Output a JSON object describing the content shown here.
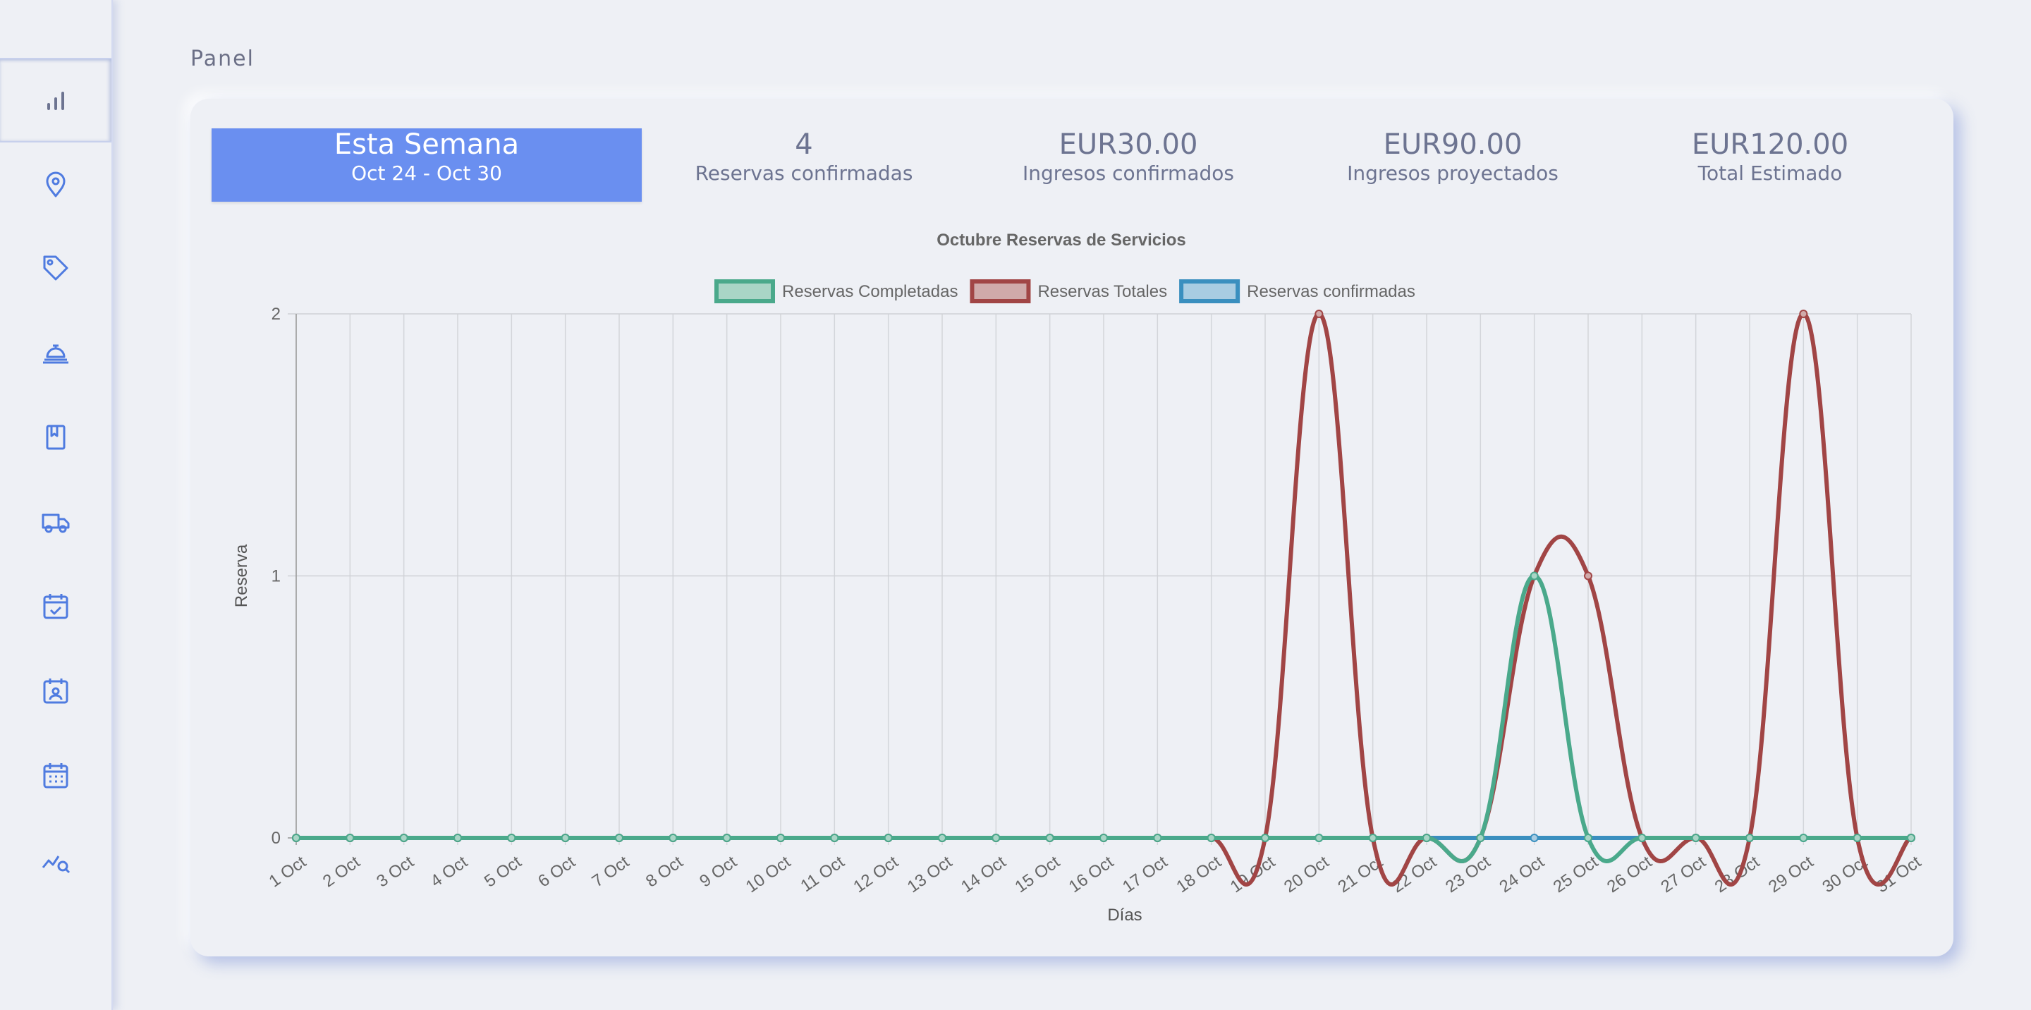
{
  "page": {
    "title": "Panel"
  },
  "sidebar": {
    "items": [
      {
        "name": "sidebar-item-dashboard",
        "icon": "bar-chart-icon"
      },
      {
        "name": "sidebar-item-locations",
        "icon": "location-pin-icon"
      },
      {
        "name": "sidebar-item-tags",
        "icon": "tag-icon"
      },
      {
        "name": "sidebar-item-services",
        "icon": "room-service-icon"
      },
      {
        "name": "sidebar-item-bookmarks",
        "icon": "bookmark-icon"
      },
      {
        "name": "sidebar-item-delivery",
        "icon": "truck-icon"
      },
      {
        "name": "sidebar-item-calendar-check",
        "icon": "calendar-check-icon"
      },
      {
        "name": "sidebar-item-calendar-user",
        "icon": "calendar-user-icon"
      },
      {
        "name": "sidebar-item-calendar",
        "icon": "calendar-icon"
      },
      {
        "name": "sidebar-item-analytics",
        "icon": "chart-search-icon"
      }
    ],
    "accent": "#4f7be0"
  },
  "stats": {
    "week": {
      "value": "Esta Semana",
      "label": "Oct 24 - Oct 30"
    },
    "confirmed": {
      "value": "4",
      "label": "Reservas confirmadas"
    },
    "income_confirmed": {
      "value": "EUR30.00",
      "label": "Ingresos confirmados"
    },
    "income_projected": {
      "value": "EUR90.00",
      "label": "Ingresos proyectados"
    },
    "total": {
      "value": "EUR120.00",
      "label": "Total Estimado"
    }
  },
  "chart_data": {
    "type": "line",
    "title": "Octubre Reservas de Servicios",
    "xlabel": "Días",
    "ylabel": "Reserva",
    "ylim": [
      0,
      2
    ],
    "yticks": [
      "0",
      "1",
      "2"
    ],
    "grid": true,
    "legend": "top",
    "categories": [
      "1 Oct",
      "2 Oct",
      "3 Oct",
      "4 Oct",
      "5 Oct",
      "6 Oct",
      "7 Oct",
      "8 Oct",
      "9 Oct",
      "10 Oct",
      "11 Oct",
      "12 Oct",
      "13 Oct",
      "14 Oct",
      "15 Oct",
      "16 Oct",
      "17 Oct",
      "18 Oct",
      "19 Oct",
      "20 Oct",
      "21 Oct",
      "22 Oct",
      "23 Oct",
      "24 Oct",
      "25 Oct",
      "26 Oct",
      "27 Oct",
      "28 Oct",
      "29 Oct",
      "30 Oct",
      "31 Oct"
    ],
    "series": [
      {
        "name": "Reservas Completadas",
        "color": "#4aa98b",
        "fill": "#a9d5c6",
        "values": [
          0,
          0,
          0,
          0,
          0,
          0,
          0,
          0,
          0,
          0,
          0,
          0,
          0,
          0,
          0,
          0,
          0,
          0,
          0,
          0,
          0,
          0,
          0,
          1,
          0,
          0,
          0,
          0,
          0,
          0,
          0
        ]
      },
      {
        "name": "Reservas Totales",
        "color": "#a14545",
        "fill": "#d0aaaa",
        "values": [
          0,
          0,
          0,
          0,
          0,
          0,
          0,
          0,
          0,
          0,
          0,
          0,
          0,
          0,
          0,
          0,
          0,
          0,
          0,
          2,
          0,
          0,
          0,
          1,
          1,
          0,
          0,
          0,
          2,
          0,
          0
        ]
      },
      {
        "name": "Reservas confirmadas",
        "color": "#3a8fbf",
        "fill": "#a8cce2",
        "values": [
          0,
          0,
          0,
          0,
          0,
          0,
          0,
          0,
          0,
          0,
          0,
          0,
          0,
          0,
          0,
          0,
          0,
          0,
          0,
          0,
          0,
          0,
          0,
          0,
          0,
          0,
          0,
          0,
          0,
          0,
          0
        ]
      }
    ]
  }
}
